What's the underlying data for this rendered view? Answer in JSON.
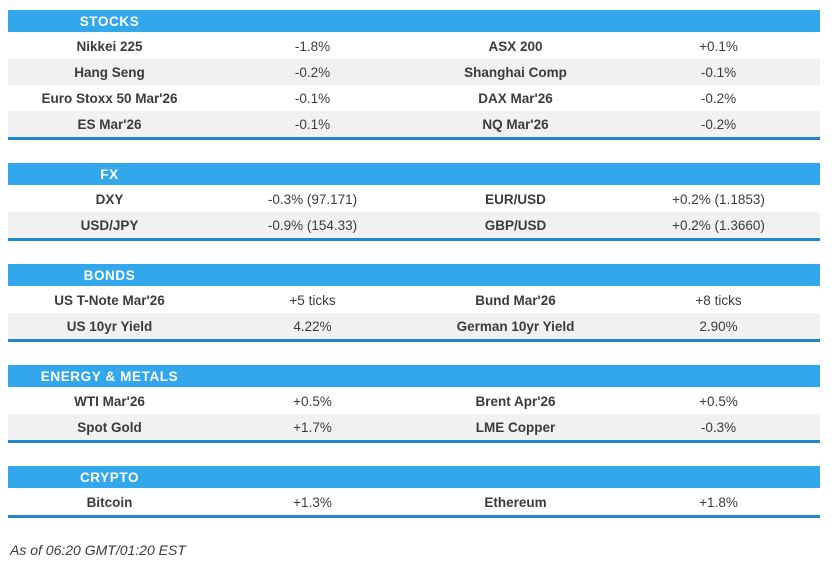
{
  "colors": {
    "header_blue": "#32a7ec",
    "rule_blue": "#1e87ce",
    "stripe_gray": "#f1f1f2",
    "text_dark": "#3b3b3c"
  },
  "sections": [
    {
      "title": "STOCKS",
      "rows": [
        {
          "left_label": "Nikkei 225",
          "left_value": "-1.8%",
          "right_label": "ASX 200",
          "right_value": "+0.1%"
        },
        {
          "left_label": "Hang Seng",
          "left_value": "-0.2%",
          "right_label": "Shanghai Comp",
          "right_value": "-0.1%"
        },
        {
          "left_label": "Euro Stoxx 50 Mar'26",
          "left_value": "-0.1%",
          "right_label": "DAX Mar'26",
          "right_value": "-0.2%"
        },
        {
          "left_label": "ES Mar'26",
          "left_value": "-0.1%",
          "right_label": "NQ Mar'26",
          "right_value": "-0.2%"
        }
      ]
    },
    {
      "title": "FX",
      "rows": [
        {
          "left_label": "DXY",
          "left_value": "-0.3% (97.171)",
          "right_label": "EUR/USD",
          "right_value": "+0.2% (1.1853)"
        },
        {
          "left_label": "USD/JPY",
          "left_value": "-0.9% (154.33)",
          "right_label": "GBP/USD",
          "right_value": "+0.2% (1.3660)"
        }
      ]
    },
    {
      "title": "BONDS",
      "rows": [
        {
          "left_label": "US T-Note Mar'26",
          "left_value": "+5 ticks",
          "right_label": "Bund Mar'26",
          "right_value": "+8 ticks"
        },
        {
          "left_label": "US 10yr Yield",
          "left_value": "4.22%",
          "right_label": "German 10yr Yield",
          "right_value": "2.90%"
        }
      ]
    },
    {
      "title": "ENERGY & METALS",
      "rows": [
        {
          "left_label": "WTI Mar'26",
          "left_value": "+0.5%",
          "right_label": "Brent Apr'26",
          "right_value": "+0.5%"
        },
        {
          "left_label": "Spot Gold",
          "left_value": "+1.7%",
          "right_label": "LME Copper",
          "right_value": "-0.3%"
        }
      ]
    },
    {
      "title": "CRYPTO",
      "rows": [
        {
          "left_label": "Bitcoin",
          "left_value": "+1.3%",
          "right_label": "Ethereum",
          "right_value": "+1.8%"
        }
      ]
    }
  ],
  "footer": {
    "as_of": "As of 06:20 GMT/01:20 EST"
  },
  "chart_data": [
    {
      "type": "table",
      "title": "STOCKS",
      "data": [
        [
          "Nikkei 225",
          "-1.8%"
        ],
        [
          "ASX 200",
          "+0.1%"
        ],
        [
          "Hang Seng",
          "-0.2%"
        ],
        [
          "Shanghai Comp",
          "-0.1%"
        ],
        [
          "Euro Stoxx 50 Mar'26",
          "-0.1%"
        ],
        [
          "DAX Mar'26",
          "-0.2%"
        ],
        [
          "ES Mar'26",
          "-0.1%"
        ],
        [
          "NQ Mar'26",
          "-0.2%"
        ]
      ]
    },
    {
      "type": "table",
      "title": "FX",
      "data": [
        [
          "DXY",
          "-0.3% (97.171)"
        ],
        [
          "EUR/USD",
          "+0.2% (1.1853)"
        ],
        [
          "USD/JPY",
          "-0.9% (154.33)"
        ],
        [
          "GBP/USD",
          "+0.2% (1.3660)"
        ]
      ]
    },
    {
      "type": "table",
      "title": "BONDS",
      "data": [
        [
          "US T-Note Mar'26",
          "+5 ticks"
        ],
        [
          "Bund Mar'26",
          "+8 ticks"
        ],
        [
          "US 10yr Yield",
          "4.22%"
        ],
        [
          "German 10yr Yield",
          "2.90%"
        ]
      ]
    },
    {
      "type": "table",
      "title": "ENERGY & METALS",
      "data": [
        [
          "WTI Mar'26",
          "+0.5%"
        ],
        [
          "Brent Apr'26",
          "+0.5%"
        ],
        [
          "Spot Gold",
          "+1.7%"
        ],
        [
          "LME Copper",
          "-0.3%"
        ]
      ]
    },
    {
      "type": "table",
      "title": "CRYPTO",
      "data": [
        [
          "Bitcoin",
          "+1.3%"
        ],
        [
          "Ethereum",
          "+1.8%"
        ]
      ]
    }
  ]
}
